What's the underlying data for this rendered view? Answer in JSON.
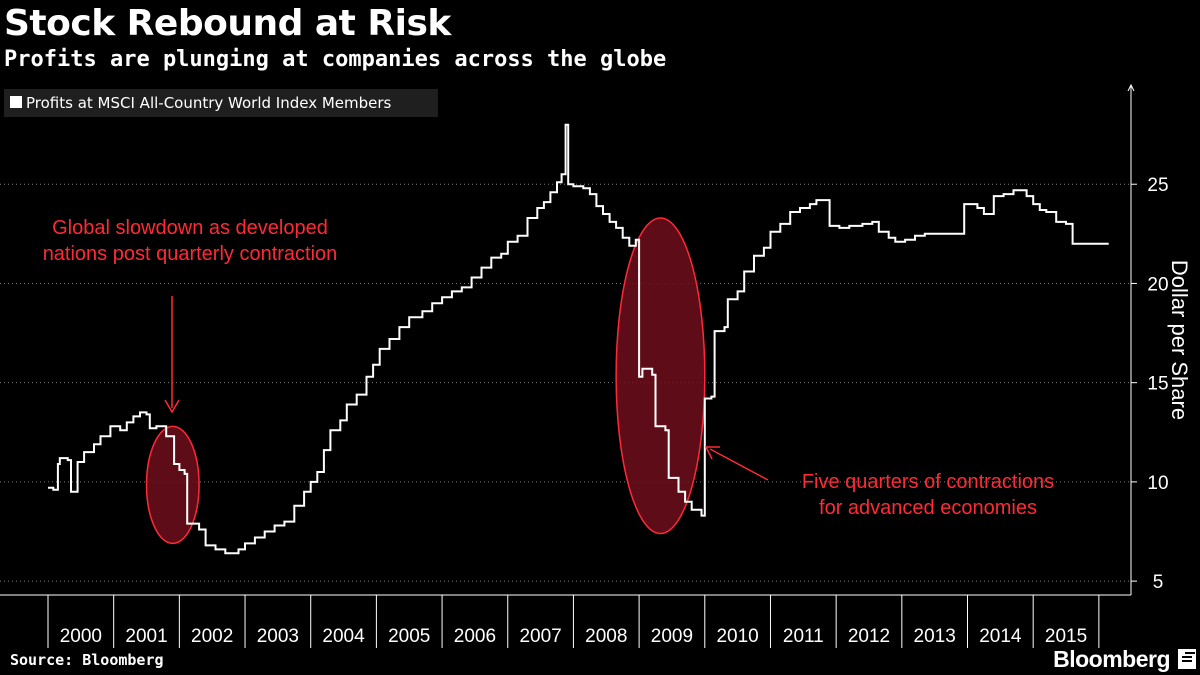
{
  "header": {
    "title": "Stock Rebound at Risk",
    "subtitle": "Profits are plunging at companies across the globe"
  },
  "footer": {
    "source": "Source: Bloomberg",
    "brand": "Bloomberg"
  },
  "colors": {
    "background": "#000000",
    "line": "#ffffff",
    "annotation": "#ff2a36",
    "highlight_fill": "#6e0f1c"
  },
  "chart_data": {
    "type": "line",
    "title": "Stock Rebound at Risk",
    "subtitle": "Profits are plunging at companies across the globe",
    "ylabel": "Dollar per Share",
    "ylim": [
      4.3,
      30
    ],
    "y_ticks": [
      5,
      10,
      15,
      20,
      25
    ],
    "xlim": [
      2000.0,
      2016.2
    ],
    "x_ticks": [
      "2000",
      "2001",
      "2002",
      "2003",
      "2004",
      "2005",
      "2006",
      "2007",
      "2008",
      "2009",
      "2010",
      "2011",
      "2012",
      "2013",
      "2014",
      "2015"
    ],
    "grid": "horizontal",
    "y_axis_side": "right",
    "legend": {
      "position": "top-left",
      "entries": [
        "Profits at MSCI All-Country World Index Members"
      ]
    },
    "series": [
      {
        "name": "Profits at MSCI All-Country World Index Members",
        "points": [
          [
            2000.0,
            9.7
          ],
          [
            2000.08,
            9.6
          ],
          [
            2000.15,
            10.9
          ],
          [
            2000.18,
            11.2
          ],
          [
            2000.3,
            11.1
          ],
          [
            2000.35,
            9.5
          ],
          [
            2000.45,
            11.0
          ],
          [
            2000.55,
            11.5
          ],
          [
            2000.7,
            11.9
          ],
          [
            2000.8,
            12.3
          ],
          [
            2000.95,
            12.8
          ],
          [
            2001.1,
            12.6
          ],
          [
            2001.2,
            13.0
          ],
          [
            2001.3,
            13.3
          ],
          [
            2001.4,
            13.5
          ],
          [
            2001.5,
            13.4
          ],
          [
            2001.55,
            12.7
          ],
          [
            2001.65,
            12.8
          ],
          [
            2001.8,
            12.3
          ],
          [
            2001.92,
            10.9
          ],
          [
            2002.0,
            10.6
          ],
          [
            2002.08,
            10.4
          ],
          [
            2002.12,
            7.9
          ],
          [
            2002.3,
            7.6
          ],
          [
            2002.4,
            6.8
          ],
          [
            2002.55,
            6.6
          ],
          [
            2002.7,
            6.4
          ],
          [
            2002.9,
            6.6
          ],
          [
            2003.0,
            6.9
          ],
          [
            2003.15,
            7.2
          ],
          [
            2003.3,
            7.5
          ],
          [
            2003.45,
            7.8
          ],
          [
            2003.6,
            8.0
          ],
          [
            2003.75,
            8.8
          ],
          [
            2003.9,
            9.5
          ],
          [
            2004.0,
            10.0
          ],
          [
            2004.1,
            10.5
          ],
          [
            2004.2,
            11.6
          ],
          [
            2004.3,
            12.6
          ],
          [
            2004.45,
            13.1
          ],
          [
            2004.55,
            13.9
          ],
          [
            2004.7,
            14.4
          ],
          [
            2004.85,
            15.3
          ],
          [
            2004.95,
            15.9
          ],
          [
            2005.05,
            16.7
          ],
          [
            2005.2,
            17.2
          ],
          [
            2005.35,
            17.8
          ],
          [
            2005.5,
            18.3
          ],
          [
            2005.7,
            18.6
          ],
          [
            2005.85,
            19.0
          ],
          [
            2006.0,
            19.3
          ],
          [
            2006.15,
            19.6
          ],
          [
            2006.3,
            19.8
          ],
          [
            2006.45,
            20.3
          ],
          [
            2006.6,
            20.8
          ],
          [
            2006.75,
            21.3
          ],
          [
            2006.9,
            21.5
          ],
          [
            2007.0,
            22.1
          ],
          [
            2007.15,
            22.4
          ],
          [
            2007.3,
            23.3
          ],
          [
            2007.45,
            23.8
          ],
          [
            2007.55,
            24.1
          ],
          [
            2007.65,
            24.6
          ],
          [
            2007.75,
            25.1
          ],
          [
            2007.82,
            25.5
          ],
          [
            2007.88,
            28.0
          ],
          [
            2007.92,
            25.0
          ],
          [
            2008.0,
            24.9
          ],
          [
            2008.15,
            24.8
          ],
          [
            2008.25,
            24.5
          ],
          [
            2008.35,
            23.9
          ],
          [
            2008.45,
            23.5
          ],
          [
            2008.55,
            23.1
          ],
          [
            2008.65,
            22.8
          ],
          [
            2008.75,
            22.3
          ],
          [
            2008.85,
            21.9
          ],
          [
            2008.95,
            22.2
          ],
          [
            2009.0,
            15.3
          ],
          [
            2009.05,
            15.7
          ],
          [
            2009.2,
            15.4
          ],
          [
            2009.25,
            12.8
          ],
          [
            2009.4,
            12.6
          ],
          [
            2009.45,
            10.2
          ],
          [
            2009.6,
            9.5
          ],
          [
            2009.7,
            9.0
          ],
          [
            2009.8,
            8.6
          ],
          [
            2009.95,
            8.3
          ],
          [
            2010.0,
            14.2
          ],
          [
            2010.1,
            14.3
          ],
          [
            2010.15,
            17.6
          ],
          [
            2010.3,
            17.8
          ],
          [
            2010.35,
            19.2
          ],
          [
            2010.5,
            19.6
          ],
          [
            2010.6,
            20.6
          ],
          [
            2010.75,
            21.4
          ],
          [
            2010.9,
            21.8
          ],
          [
            2011.0,
            22.6
          ],
          [
            2011.15,
            23.0
          ],
          [
            2011.3,
            23.6
          ],
          [
            2011.45,
            23.8
          ],
          [
            2011.6,
            24.0
          ],
          [
            2011.7,
            24.2
          ],
          [
            2011.85,
            24.2
          ],
          [
            2011.9,
            22.9
          ],
          [
            2012.05,
            22.8
          ],
          [
            2012.2,
            22.9
          ],
          [
            2012.4,
            23.0
          ],
          [
            2012.55,
            23.1
          ],
          [
            2012.65,
            22.6
          ],
          [
            2012.8,
            22.3
          ],
          [
            2012.9,
            22.1
          ],
          [
            2013.05,
            22.2
          ],
          [
            2013.2,
            22.4
          ],
          [
            2013.35,
            22.5
          ],
          [
            2013.6,
            22.5
          ],
          [
            2013.9,
            22.5
          ],
          [
            2013.95,
            24.0
          ],
          [
            2014.15,
            23.8
          ],
          [
            2014.25,
            23.5
          ],
          [
            2014.4,
            24.4
          ],
          [
            2014.55,
            24.5
          ],
          [
            2014.7,
            24.7
          ],
          [
            2014.9,
            24.4
          ],
          [
            2015.0,
            24.0
          ],
          [
            2015.1,
            23.7
          ],
          [
            2015.2,
            23.6
          ],
          [
            2015.35,
            23.1
          ],
          [
            2015.5,
            23.0
          ],
          [
            2015.6,
            22.0
          ],
          [
            2015.8,
            22.0
          ],
          [
            2016.0,
            22.0
          ],
          [
            2016.15,
            22.0
          ]
        ]
      }
    ],
    "annotations": [
      {
        "text_lines": [
          "Global slowdown as developed",
          "nations post quarterly contraction"
        ]
      },
      {
        "text_lines": [
          "Five quarters of contractions",
          "for advanced economies"
        ]
      }
    ],
    "highlight_regions": [
      {
        "x_range": [
          2001.5,
          2002.3
        ],
        "y_range": [
          6.9,
          12.8
        ]
      },
      {
        "x_range": [
          2008.65,
          2010.0
        ],
        "y_range": [
          7.4,
          23.3
        ]
      }
    ]
  }
}
